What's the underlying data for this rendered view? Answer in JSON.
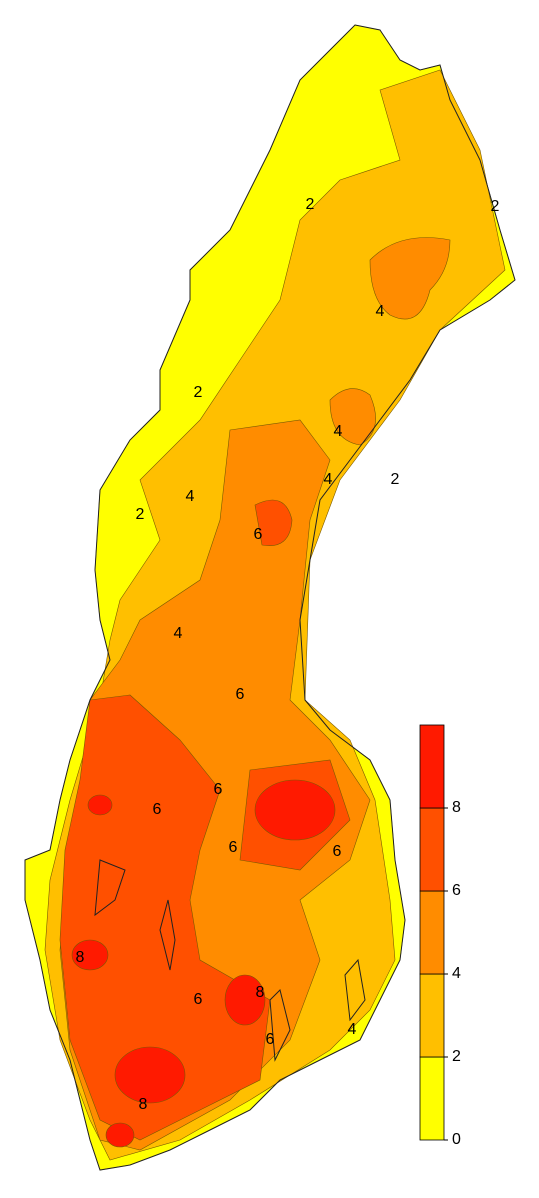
{
  "map": {
    "contour_labels": [
      "2",
      "2",
      "2",
      "2",
      "2",
      "4",
      "4",
      "4",
      "4",
      "4",
      "4",
      "6",
      "6",
      "6",
      "6",
      "6",
      "6",
      "6",
      "6",
      "8",
      "8",
      "8"
    ],
    "legend": {
      "range": [
        0,
        10
      ],
      "ticks": [
        0,
        2,
        4,
        6,
        8
      ],
      "colors": [
        "#ffff00",
        "#ffbf00",
        "#ff8c00",
        "#ff5000",
        "#ff1a00"
      ]
    }
  }
}
